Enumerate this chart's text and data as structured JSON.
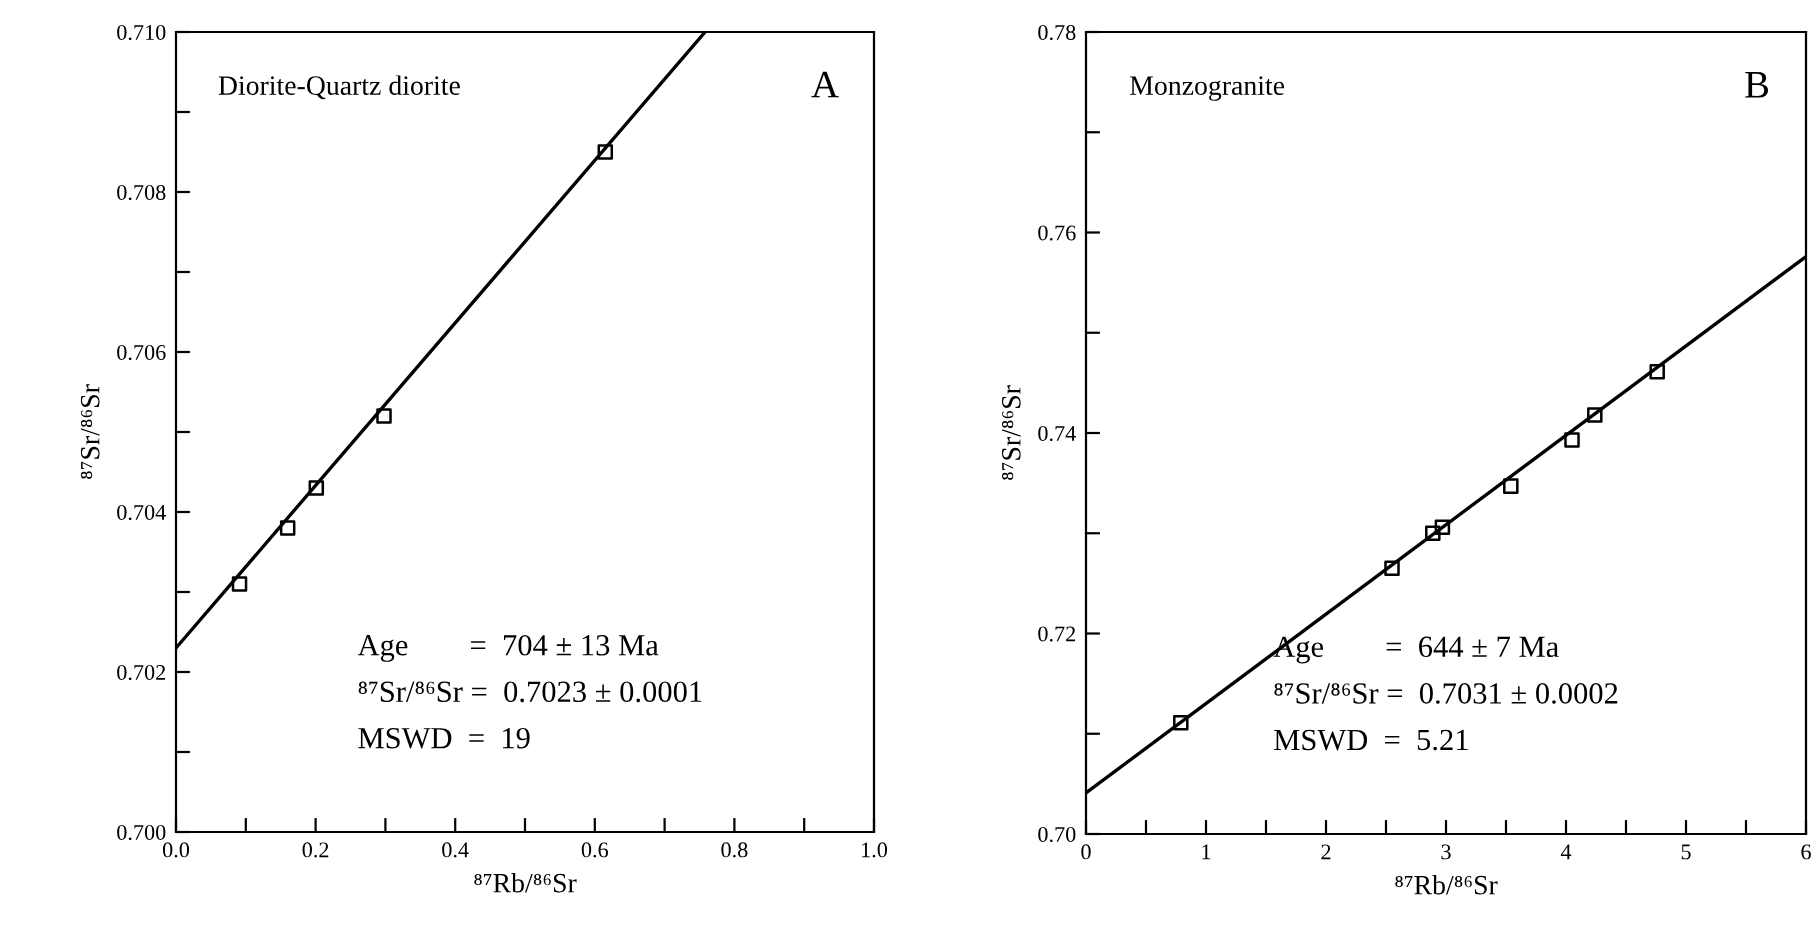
{
  "chart_data": [
    {
      "type": "scatter",
      "title": "Diorite-Quartz diorite",
      "xlabel": "⁸⁷Rb/⁸⁶Sr",
      "ylabel": "⁸⁷Sr/⁸⁶Sr",
      "annotations": [
        "A",
        "Age        =  704 ± 13 Ma",
        "⁸⁷Sr/⁸⁶Sr =  0.7023 ± 0.0001",
        "MSWD  =  19"
      ],
      "series": [
        {
          "color": "#000000",
          "marker": "square",
          "x": [
            0.091,
            0.16,
            0.201,
            0.298,
            0.615
          ],
          "values": [
            0.7031,
            0.7038,
            0.7043,
            0.7052,
            0.7085
          ]
        },
        {
          "type": "line",
          "color": "#000000",
          "marker": "none",
          "line_style": "solid",
          "x": [
            0,
            0.758
          ],
          "values": [
            0.7023,
            0.71
          ]
        }
      ],
      "xlim": [
        0,
        1.0
      ],
      "ylim": [
        0.7,
        0.71
      ],
      "xticks": [
        {
          "value": 0,
          "label": "0.0"
        },
        {
          "value": 0.1,
          "label": null
        },
        {
          "value": 0.2,
          "label": "0.2"
        },
        {
          "value": 0.3,
          "label": null
        },
        {
          "value": 0.4,
          "label": "0.4"
        },
        {
          "value": 0.5,
          "label": null
        },
        {
          "value": 0.6,
          "label": "0.6"
        },
        {
          "value": 0.7,
          "label": null
        },
        {
          "value": 0.8,
          "label": "0.8"
        },
        {
          "value": 0.9,
          "label": null
        },
        {
          "value": 1.0,
          "label": "1.0"
        }
      ],
      "yticks": [
        {
          "value": 0.7,
          "label": "0.700"
        },
        {
          "value": 0.701,
          "label": null
        },
        {
          "value": 0.702,
          "label": "0.702"
        },
        {
          "value": 0.703,
          "label": null
        },
        {
          "value": 0.704,
          "label": "0.704"
        },
        {
          "value": 0.705,
          "label": null
        },
        {
          "value": 0.706,
          "label": "0.706"
        },
        {
          "value": 0.707,
          "label": null
        },
        {
          "value": 0.708,
          "label": "0.708"
        },
        {
          "value": 0.709,
          "label": null
        },
        {
          "value": 0.71,
          "label": "0.710"
        }
      ],
      "grid": false,
      "legend": false
    },
    {
      "type": "scatter",
      "title": "Monzogranite",
      "xlabel": "⁸⁷Rb/⁸⁶Sr",
      "ylabel": "⁸⁷Sr/⁸⁶Sr",
      "annotations": [
        "B",
        "Age        =  644 ± 7 Ma",
        "⁸⁷Sr/⁸⁶Sr =  0.7031 ± 0.0002",
        "MSWD  =  5.21"
      ],
      "series": [
        {
          "color": "#000000",
          "marker": "square",
          "x": [
            0.79,
            2.55,
            2.89,
            2.97,
            3.54,
            4.05,
            4.24,
            4.76
          ],
          "values": [
            0.7111,
            0.7265,
            0.73,
            0.7306,
            0.7347,
            0.7393,
            0.7418,
            0.7461
          ]
        },
        {
          "type": "line",
          "color": "#000000",
          "marker": "none",
          "line_style": "solid",
          "x": [
            0,
            6
          ],
          "values": [
            0.7041,
            0.7576
          ]
        }
      ],
      "xlim": [
        0,
        6
      ],
      "ylim": [
        0.7,
        0.78
      ],
      "xticks": [
        0,
        {
          "value": 0.5,
          "label": null
        },
        1,
        {
          "value": 1.5,
          "label": null
        },
        2,
        {
          "value": 2.5,
          "label": null
        },
        3,
        {
          "value": 3.5,
          "label": null
        },
        4,
        {
          "value": 4.5,
          "label": null
        },
        5,
        {
          "value": 5.5,
          "label": null
        },
        6
      ],
      "yticks": [
        {
          "value": 0.7,
          "label": "0.70"
        },
        {
          "value": 0.71,
          "label": null
        },
        {
          "value": 0.72,
          "label": "0.72"
        },
        {
          "value": 0.73,
          "label": null
        },
        {
          "value": 0.74,
          "label": "0.74"
        },
        {
          "value": 0.75,
          "label": null
        },
        {
          "value": 0.76,
          "label": "0.76"
        },
        {
          "value": 0.77,
          "label": null
        },
        {
          "value": 0.78,
          "label": "0.78"
        }
      ],
      "grid": false,
      "legend": false
    }
  ]
}
